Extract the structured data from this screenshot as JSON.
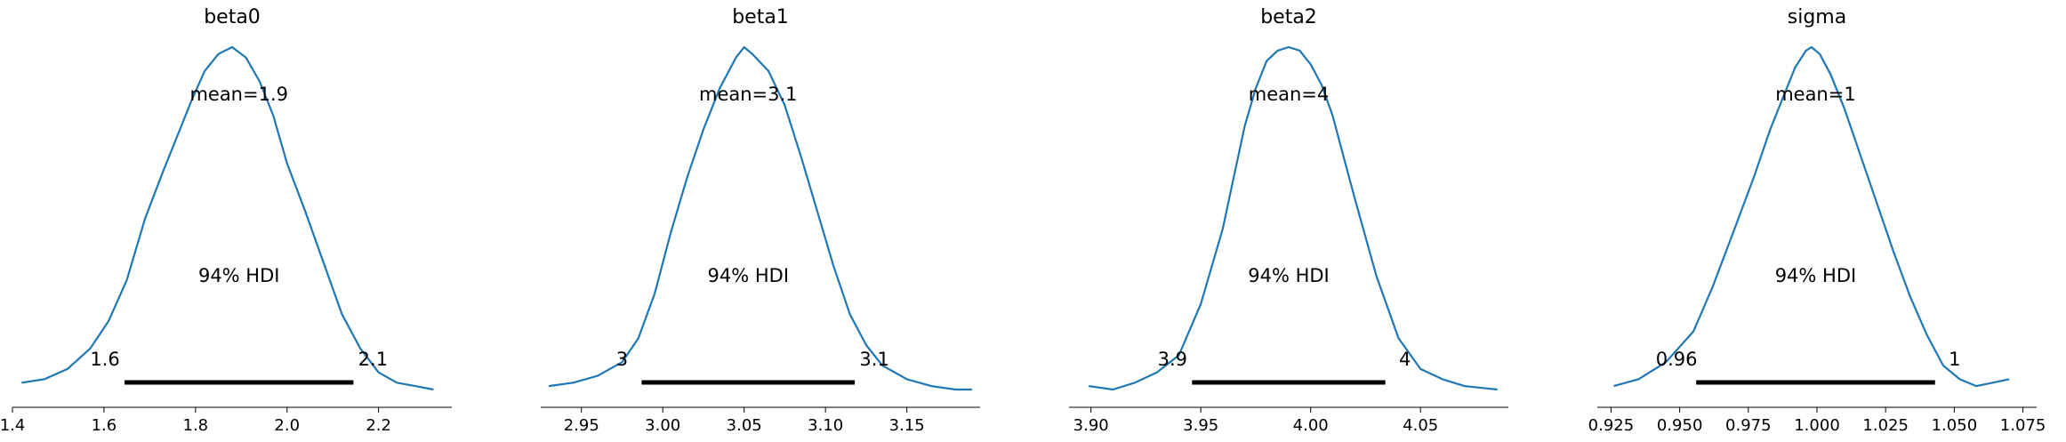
{
  "chart_data": [
    {
      "type": "line",
      "title": "beta0",
      "mean_label": "mean=1.9",
      "hdi_label": "94% HDI",
      "hdi_low_label": "1.6",
      "hdi_high_label": "2.1",
      "hdi": [
        1.645,
        2.145
      ],
      "xlim": [
        1.4,
        2.36
      ],
      "xticks": [
        1.4,
        1.6,
        1.8,
        2.0,
        2.2
      ],
      "xtick_labels": [
        "1.4",
        "1.6",
        "1.8",
        "2.0",
        "2.2"
      ],
      "x": [
        1.42,
        1.47,
        1.52,
        1.57,
        1.61,
        1.65,
        1.69,
        1.73,
        1.76,
        1.79,
        1.82,
        1.85,
        1.88,
        1.91,
        1.94,
        1.97,
        2.0,
        2.04,
        2.08,
        2.12,
        2.16,
        2.2,
        2.24,
        2.28,
        2.32
      ],
      "y": [
        0.02,
        0.03,
        0.06,
        0.12,
        0.2,
        0.32,
        0.5,
        0.64,
        0.74,
        0.84,
        0.93,
        0.98,
        1.0,
        0.97,
        0.9,
        0.8,
        0.66,
        0.52,
        0.37,
        0.22,
        0.12,
        0.05,
        0.02,
        0.01,
        0.0
      ]
    },
    {
      "type": "line",
      "title": "beta1",
      "mean_label": "mean=3.1",
      "hdi_label": "94% HDI",
      "hdi_low_label": "3",
      "hdi_high_label": "3.1",
      "hdi": [
        2.987,
        3.118
      ],
      "xlim": [
        2.925,
        3.195
      ],
      "xticks": [
        2.95,
        3.0,
        3.05,
        3.1,
        3.15
      ],
      "xtick_labels": [
        "2.95",
        "3.00",
        "3.05",
        "3.10",
        "3.15"
      ],
      "x": [
        2.93,
        2.945,
        2.96,
        2.975,
        2.985,
        2.995,
        3.005,
        3.015,
        3.025,
        3.035,
        3.045,
        3.05,
        3.055,
        3.065,
        3.075,
        3.085,
        3.095,
        3.105,
        3.115,
        3.125,
        3.135,
        3.15,
        3.165,
        3.18,
        3.19
      ],
      "y": [
        0.01,
        0.02,
        0.04,
        0.08,
        0.15,
        0.28,
        0.46,
        0.62,
        0.76,
        0.88,
        0.97,
        1.0,
        0.98,
        0.93,
        0.83,
        0.68,
        0.52,
        0.36,
        0.22,
        0.13,
        0.07,
        0.03,
        0.01,
        0.0,
        0.0
      ]
    },
    {
      "type": "line",
      "title": "beta2",
      "mean_label": "mean=4",
      "hdi_label": "94% HDI",
      "hdi_low_label": "3.9",
      "hdi_high_label": "4",
      "hdi": [
        3.946,
        4.034
      ],
      "xlim": [
        3.89,
        4.09
      ],
      "xticks": [
        3.9,
        3.95,
        4.0,
        4.05
      ],
      "xtick_labels": [
        "3.90",
        "3.95",
        "4.00",
        "4.05"
      ],
      "x": [
        3.899,
        3.91,
        3.92,
        3.93,
        3.94,
        3.95,
        3.96,
        3.965,
        3.97,
        3.975,
        3.98,
        3.985,
        3.99,
        3.995,
        4.0,
        4.005,
        4.01,
        4.015,
        4.02,
        4.03,
        4.04,
        4.05,
        4.06,
        4.07,
        4.085
      ],
      "y": [
        0.01,
        0.0,
        0.02,
        0.05,
        0.1,
        0.25,
        0.47,
        0.62,
        0.77,
        0.88,
        0.96,
        0.99,
        1.0,
        0.99,
        0.95,
        0.89,
        0.8,
        0.68,
        0.56,
        0.33,
        0.15,
        0.06,
        0.03,
        0.01,
        0.0
      ]
    },
    {
      "type": "line",
      "title": "sigma",
      "mean_label": "mean=1",
      "hdi_label": "94% HDI",
      "hdi_low_label": "0.96",
      "hdi_high_label": "1",
      "hdi": [
        0.956,
        1.043
      ],
      "xlim": [
        0.92,
        1.08
      ],
      "xticks": [
        0.925,
        0.95,
        0.975,
        1.0,
        1.025,
        1.05,
        1.075
      ],
      "xtick_labels": [
        "0.925",
        "0.950",
        "0.975",
        "1.000",
        "1.025",
        "1.050",
        "1.075"
      ],
      "x": [
        0.926,
        0.935,
        0.945,
        0.955,
        0.962,
        0.97,
        0.977,
        0.983,
        0.988,
        0.992,
        0.996,
        0.998,
        1.001,
        1.005,
        1.01,
        1.016,
        1.022,
        1.028,
        1.034,
        1.04,
        1.046,
        1.052,
        1.058,
        1.064,
        1.07
      ],
      "y": [
        0.01,
        0.03,
        0.08,
        0.17,
        0.3,
        0.47,
        0.62,
        0.76,
        0.86,
        0.94,
        0.99,
        1.0,
        0.98,
        0.92,
        0.82,
        0.68,
        0.54,
        0.4,
        0.27,
        0.16,
        0.07,
        0.03,
        0.01,
        0.02,
        0.03
      ]
    }
  ]
}
